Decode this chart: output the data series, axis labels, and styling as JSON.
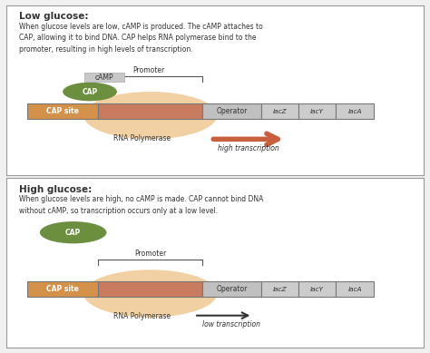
{
  "bg_color": "#f0f0f0",
  "panel_bg": "#ffffff",
  "border_color": "#999999",
  "title1": "Low glucose:",
  "desc1": "When glucose levels are low, cAMP is produced. The cAMP attaches to\nCAP, allowing it to bind DNA. CAP helps RNA polymerase bind to the\npromoter, resulting in high levels of transcription.",
  "title2": "High glucose:",
  "desc2": "When glucose levels are high, no cAMP is made. CAP cannot bind DNA\nwithout cAMP, so transcription occurs only at a low level.",
  "cap_site_color": "#d4914a",
  "promoter_color": "#c97b60",
  "operator_color": "#c0c0c0",
  "gene_color": "#cccccc",
  "cap_color": "#6b8f3e",
  "camp_color": "#c8c8c8",
  "rna_poly_color": "#f0cc99",
  "arrow_high_color": "#c86040",
  "arrow_low_color": "#333333",
  "text_color": "#333333",
  "white": "#ffffff"
}
